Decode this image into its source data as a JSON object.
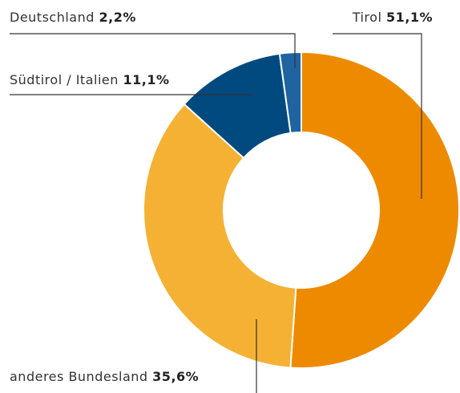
{
  "chart_data": {
    "type": "donut",
    "categories": [
      "Tirol",
      "anderes Bundesland",
      "Südtirol / Italien",
      "Deutschland"
    ],
    "values": [
      51.1,
      35.6,
      11.1,
      2.2
    ],
    "value_labels": [
      "51,1%",
      "35,6%",
      "11,1%",
      "2,2%"
    ],
    "colors": [
      "#ee8a00",
      "#f5b133",
      "#004a80",
      "#1f63a0"
    ]
  }
}
